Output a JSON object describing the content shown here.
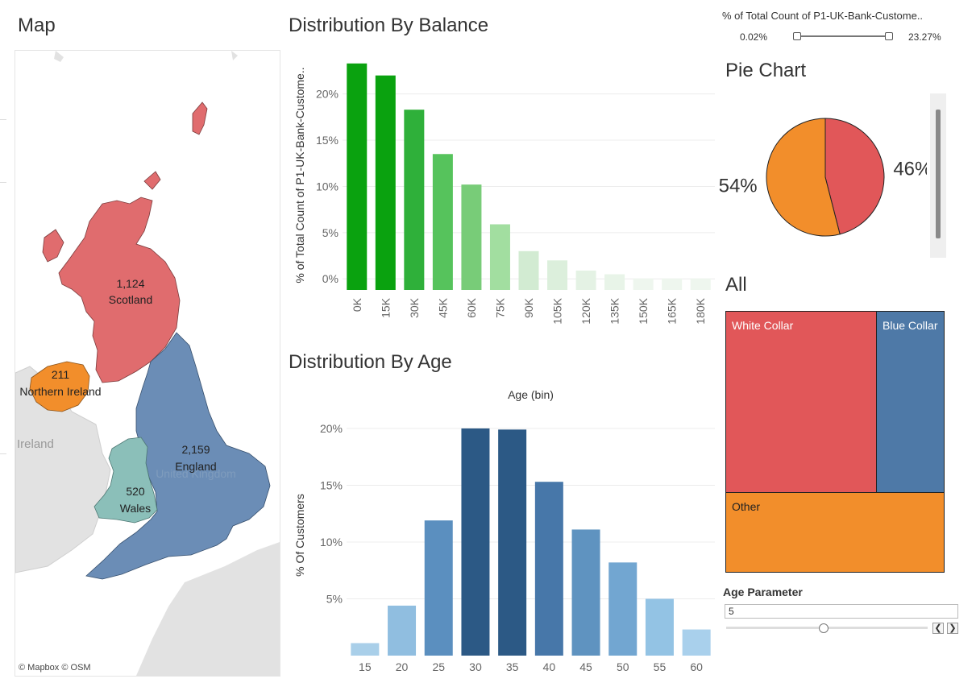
{
  "map": {
    "title": "Map",
    "credit": "© Mapbox © OSM",
    "background_labels": {
      "ireland": "Ireland",
      "uk": "United Kingdom"
    },
    "regions": [
      {
        "name": "Scotland",
        "value": "1,124",
        "color": "#e06c6e"
      },
      {
        "name": "Northern Ireland",
        "value": "211",
        "color": "#f28e2b"
      },
      {
        "name": "England",
        "value": "2,159",
        "color": "#6b8db6"
      },
      {
        "name": "Wales",
        "value": "520",
        "color": "#8bbfb9"
      }
    ]
  },
  "filter": {
    "title": "% of Total Count of P1-UK-Bank-Custome..",
    "min_label": "0.02%",
    "max_label": "23.27%"
  },
  "pie_title": "Pie Chart",
  "treemap_title": "All",
  "parameter": {
    "label": "Age Parameter",
    "value": "5",
    "prev_symbol": "❮",
    "next_symbol": "❯",
    "position_fraction": 0.48
  },
  "chart_data": [
    {
      "type": "bar",
      "title": "Distribution By Balance",
      "ylabel": "% of Total Count of P1-UK-Bank-Custome..",
      "categories": [
        "0K",
        "15K",
        "30K",
        "45K",
        "60K",
        "75K",
        "90K",
        "105K",
        "120K",
        "135K",
        "150K",
        "165K",
        "180K"
      ],
      "values": [
        23.3,
        22.0,
        18.3,
        13.5,
        10.2,
        5.9,
        3.0,
        2.0,
        0.9,
        0.5,
        0.05,
        0.05,
        0.05
      ],
      "colors": [
        "#0aa20f",
        "#0aa20f",
        "#2fb03a",
        "#56c35c",
        "#78cc78",
        "#a2dea0",
        "#d2ebd2",
        "#dcefdc",
        "#e4f2e4",
        "#e8f4e8",
        "#eef6ee",
        "#eef6ee",
        "#eef6ee"
      ],
      "yticks": [
        0,
        5,
        10,
        15,
        20
      ],
      "ytick_labels": [
        "0%",
        "5%",
        "10%",
        "15%",
        "20%"
      ],
      "ylim": [
        -1.2,
        24.5
      ],
      "grid": true
    },
    {
      "type": "bar",
      "title": "Distribution By Age",
      "xlabel": "Age (bin)",
      "ylabel": "% Of Customers",
      "categories": [
        "15",
        "20",
        "25",
        "30",
        "35",
        "40",
        "45",
        "50",
        "55",
        "60"
      ],
      "values": [
        1.1,
        4.4,
        11.9,
        20.0,
        19.9,
        15.3,
        11.1,
        8.2,
        5.0,
        2.3
      ],
      "colors": [
        "#a9cfe9",
        "#90bee0",
        "#5b8fbf",
        "#2c5985",
        "#2c5985",
        "#4777a9",
        "#5f93c0",
        "#72a6d1",
        "#93c3e4",
        "#a9d0ec"
      ],
      "yticks": [
        5,
        10,
        15,
        20
      ],
      "ytick_labels": [
        "5%",
        "10%",
        "15%",
        "20%"
      ],
      "ylim": [
        0,
        21.2
      ],
      "grid": true
    },
    {
      "type": "pie",
      "slices": [
        {
          "label": "46%",
          "value": 46,
          "color": "#e15759"
        },
        {
          "label": "54%",
          "value": 54,
          "color": "#f28e2b"
        }
      ]
    },
    {
      "type": "treemap",
      "tiles": [
        {
          "label": "White Collar",
          "value": 38.0,
          "color": "#e15759"
        },
        {
          "label": "Blue Collar",
          "value": 17.3,
          "color": "#4e79a7"
        },
        {
          "label": "Other",
          "value": 24.7,
          "color": "#f28e2b"
        }
      ]
    }
  ]
}
